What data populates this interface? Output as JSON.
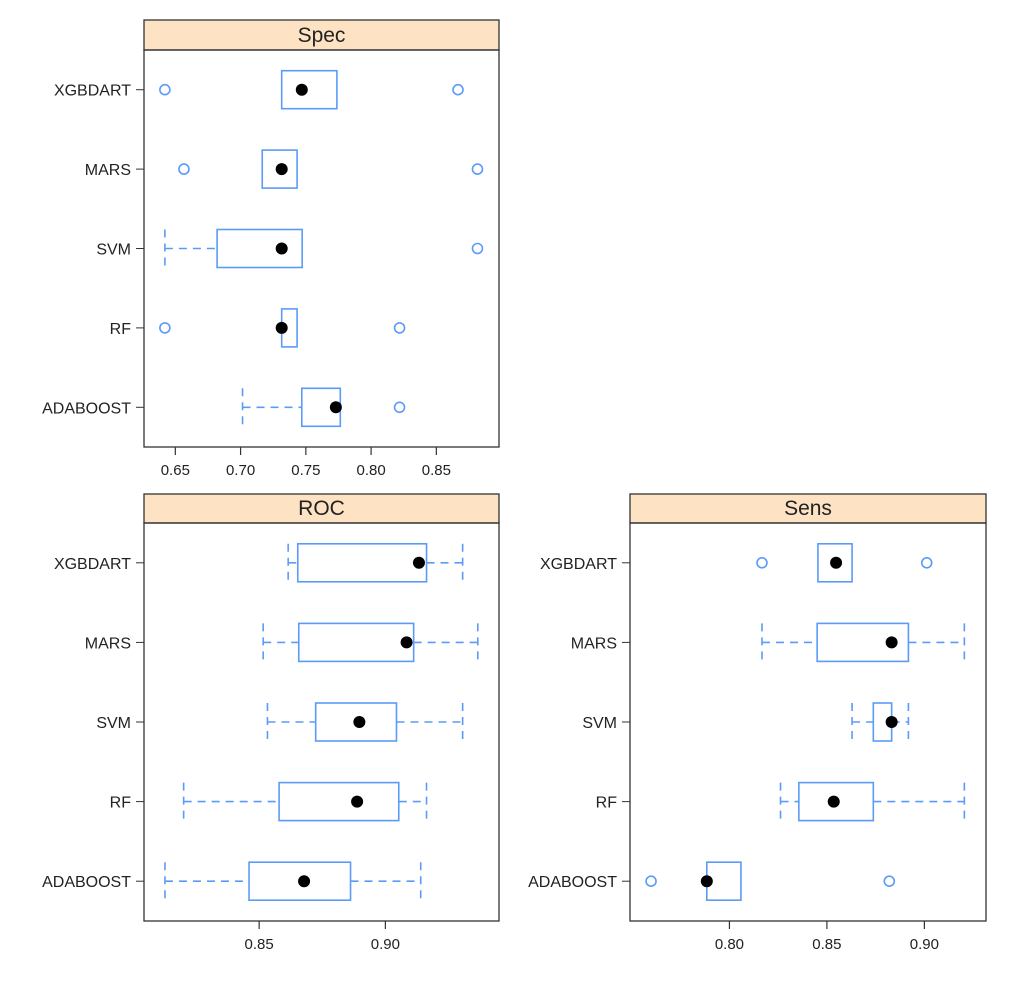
{
  "chart_data": [
    {
      "type": "boxplot",
      "title": "Spec",
      "categories": [
        "ADABOOST",
        "RF",
        "SVM",
        "MARS",
        "XGBDART"
      ],
      "xlim": [
        0.626,
        0.898
      ],
      "ticks": [
        "0.65",
        "0.70",
        "0.75",
        "0.80",
        "0.85"
      ],
      "tick_values": [
        0.65,
        0.7,
        0.75,
        0.8,
        0.85
      ],
      "boxes": [
        {
          "name": "ADABOOST",
          "whisker_low": 0.7015,
          "q1": 0.7469,
          "median": 0.773,
          "q3": 0.7764,
          "whisker_high": 0.7764,
          "outliers": [
            0.8218
          ]
        },
        {
          "name": "RF",
          "whisker_low": 0.7315,
          "q1": 0.7315,
          "median": 0.7315,
          "q3": 0.7433,
          "whisker_high": 0.7433,
          "outliers": [
            0.642,
            0.8218
          ]
        },
        {
          "name": "SVM",
          "whisker_low": 0.642,
          "q1": 0.682,
          "median": 0.7315,
          "q3": 0.7472,
          "whisker_high": 0.7472,
          "outliers": [
            0.8815
          ]
        },
        {
          "name": "MARS",
          "whisker_low": 0.7166,
          "q1": 0.7166,
          "median": 0.7315,
          "q3": 0.7433,
          "whisker_high": 0.7433,
          "outliers": [
            0.6566,
            0.8815
          ]
        },
        {
          "name": "XGBDART",
          "whisker_low": 0.7315,
          "q1": 0.7315,
          "median": 0.7469,
          "q3": 0.7738,
          "whisker_high": 0.7738,
          "outliers": [
            0.642,
            0.8666
          ]
        }
      ]
    },
    {
      "type": "boxplot",
      "title": "ROC",
      "categories": [
        "ADABOOST",
        "RF",
        "SVM",
        "MARS",
        "XGBDART"
      ],
      "xlim": [
        0.8044,
        0.945
      ],
      "ticks": [
        "0.85",
        "0.90"
      ],
      "tick_values": [
        0.85,
        0.9
      ],
      "boxes": [
        {
          "name": "ADABOOST",
          "whisker_low": 0.8127,
          "q1": 0.846,
          "median": 0.8678,
          "q3": 0.8862,
          "whisker_high": 0.914,
          "outliers": []
        },
        {
          "name": "RF",
          "whisker_low": 0.8201,
          "q1": 0.8579,
          "median": 0.8888,
          "q3": 0.9053,
          "whisker_high": 0.9163,
          "outliers": []
        },
        {
          "name": "SVM",
          "whisker_low": 0.8533,
          "q1": 0.8724,
          "median": 0.8897,
          "q3": 0.9044,
          "whisker_high": 0.9306,
          "outliers": []
        },
        {
          "name": "MARS",
          "whisker_low": 0.8516,
          "q1": 0.8657,
          "median": 0.9084,
          "q3": 0.9112,
          "whisker_high": 0.9366,
          "outliers": []
        },
        {
          "name": "XGBDART",
          "whisker_low": 0.8615,
          "q1": 0.8653,
          "median": 0.9133,
          "q3": 0.9163,
          "whisker_high": 0.9306,
          "outliers": []
        }
      ]
    },
    {
      "type": "boxplot",
      "title": "Sens",
      "categories": [
        "ADABOOST",
        "RF",
        "SVM",
        "MARS",
        "XGBDART"
      ],
      "xlim": [
        0.749,
        0.9316
      ],
      "ticks": [
        "0.80",
        "0.85",
        "0.90"
      ],
      "tick_values": [
        0.8,
        0.85,
        0.9
      ],
      "boxes": [
        {
          "name": "ADABOOST",
          "whisker_low": 0.7884,
          "q1": 0.7884,
          "median": 0.7884,
          "q3": 0.8059,
          "whisker_high": 0.8059,
          "outliers": [
            0.7598,
            0.882
          ]
        },
        {
          "name": "RF",
          "whisker_low": 0.8262,
          "q1": 0.8356,
          "median": 0.8535,
          "q3": 0.8738,
          "whisker_high": 0.9205,
          "outliers": []
        },
        {
          "name": "SVM",
          "whisker_low": 0.8629,
          "q1": 0.8738,
          "median": 0.8832,
          "q3": 0.8832,
          "whisker_high": 0.8918,
          "outliers": []
        },
        {
          "name": "MARS",
          "whisker_low": 0.8167,
          "q1": 0.845,
          "median": 0.8832,
          "q3": 0.8918,
          "whisker_high": 0.9205,
          "outliers": []
        },
        {
          "name": "XGBDART",
          "whisker_low": 0.8454,
          "q1": 0.8454,
          "median": 0.8547,
          "q3": 0.8629,
          "whisker_high": 0.8629,
          "outliers": [
            0.8167,
            0.9012
          ]
        }
      ]
    }
  ],
  "colors": {
    "box": "#5b9bf8",
    "median": "#000000",
    "strip": "#fde3c4",
    "axis": "#333333"
  }
}
